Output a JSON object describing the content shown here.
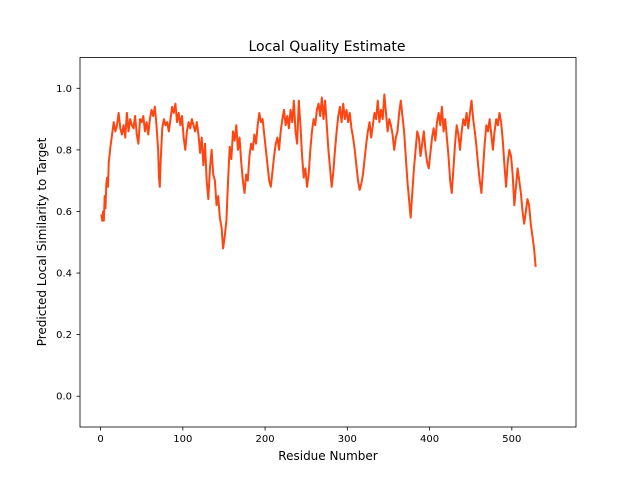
{
  "chart_data": {
    "type": "line",
    "title": "Local Quality Estimate",
    "xlabel": "Residue Number",
    "ylabel": "Predicted Local Similarity to Target",
    "xlim": [
      -25,
      578
    ],
    "ylim": [
      -0.1,
      1.1
    ],
    "x_ticks": [
      0,
      100,
      200,
      300,
      400,
      500
    ],
    "y_ticks": [
      0.0,
      0.2,
      0.4,
      0.6,
      0.8,
      1.0
    ],
    "x_tick_labels": [
      "0",
      "100",
      "200",
      "300",
      "400",
      "500"
    ],
    "y_tick_labels": [
      "0.0",
      "0.2",
      "0.4",
      "0.6",
      "0.8",
      "1.0"
    ],
    "grid": false,
    "legend": "none",
    "line_color": "#ff4511",
    "series": [
      {
        "points": [
          [
            1,
            0.59
          ],
          [
            2,
            0.57
          ],
          [
            3,
            0.6
          ],
          [
            4,
            0.57
          ],
          [
            5,
            0.65
          ],
          [
            6,
            0.61
          ],
          [
            7,
            0.69
          ],
          [
            8,
            0.71
          ],
          [
            9,
            0.68
          ],
          [
            10,
            0.76
          ],
          [
            12,
            0.81
          ],
          [
            14,
            0.85
          ],
          [
            16,
            0.89
          ],
          [
            18,
            0.86
          ],
          [
            20,
            0.88
          ],
          [
            22,
            0.92
          ],
          [
            24,
            0.87
          ],
          [
            26,
            0.85
          ],
          [
            28,
            0.88
          ],
          [
            30,
            0.84
          ],
          [
            32,
            0.92
          ],
          [
            34,
            0.86
          ],
          [
            36,
            0.9
          ],
          [
            38,
            0.88
          ],
          [
            40,
            0.87
          ],
          [
            42,
            0.91
          ],
          [
            44,
            0.85
          ],
          [
            46,
            0.82
          ],
          [
            48,
            0.9
          ],
          [
            50,
            0.89
          ],
          [
            52,
            0.91
          ],
          [
            54,
            0.86
          ],
          [
            56,
            0.89
          ],
          [
            58,
            0.85
          ],
          [
            60,
            0.9
          ],
          [
            62,
            0.93
          ],
          [
            64,
            0.91
          ],
          [
            66,
            0.94
          ],
          [
            68,
            0.88
          ],
          [
            70,
            0.8
          ],
          [
            71,
            0.71
          ],
          [
            72,
            0.68
          ],
          [
            73,
            0.76
          ],
          [
            75,
            0.87
          ],
          [
            77,
            0.9
          ],
          [
            79,
            0.88
          ],
          [
            81,
            0.89
          ],
          [
            83,
            0.86
          ],
          [
            85,
            0.9
          ],
          [
            87,
            0.94
          ],
          [
            89,
            0.92
          ],
          [
            91,
            0.95
          ],
          [
            93,
            0.89
          ],
          [
            95,
            0.92
          ],
          [
            97,
            0.88
          ],
          [
            99,
            0.91
          ],
          [
            101,
            0.84
          ],
          [
            103,
            0.8
          ],
          [
            105,
            0.86
          ],
          [
            107,
            0.89
          ],
          [
            109,
            0.87
          ],
          [
            111,
            0.9
          ],
          [
            113,
            0.88
          ],
          [
            115,
            0.86
          ],
          [
            117,
            0.89
          ],
          [
            119,
            0.85
          ],
          [
            121,
            0.79
          ],
          [
            123,
            0.84
          ],
          [
            125,
            0.75
          ],
          [
            127,
            0.82
          ],
          [
            129,
            0.7
          ],
          [
            131,
            0.64
          ],
          [
            133,
            0.74
          ],
          [
            135,
            0.8
          ],
          [
            137,
            0.72
          ],
          [
            139,
            0.7
          ],
          [
            141,
            0.62
          ],
          [
            143,
            0.65
          ],
          [
            145,
            0.58
          ],
          [
            147,
            0.55
          ],
          [
            149,
            0.48
          ],
          [
            151,
            0.52
          ],
          [
            153,
            0.57
          ],
          [
            155,
            0.7
          ],
          [
            157,
            0.81
          ],
          [
            159,
            0.77
          ],
          [
            161,
            0.86
          ],
          [
            163,
            0.83
          ],
          [
            165,
            0.88
          ],
          [
            167,
            0.8
          ],
          [
            169,
            0.84
          ],
          [
            171,
            0.76
          ],
          [
            173,
            0.7
          ],
          [
            175,
            0.66
          ],
          [
            177,
            0.72
          ],
          [
            179,
            0.7
          ],
          [
            181,
            0.78
          ],
          [
            183,
            0.82
          ],
          [
            185,
            0.8
          ],
          [
            187,
            0.85
          ],
          [
            189,
            0.82
          ],
          [
            191,
            0.88
          ],
          [
            193,
            0.92
          ],
          [
            195,
            0.89
          ],
          [
            197,
            0.9
          ],
          [
            199,
            0.85
          ],
          [
            201,
            0.8
          ],
          [
            203,
            0.75
          ],
          [
            205,
            0.7
          ],
          [
            207,
            0.68
          ],
          [
            209,
            0.73
          ],
          [
            211,
            0.78
          ],
          [
            213,
            0.82
          ],
          [
            215,
            0.84
          ],
          [
            217,
            0.8
          ],
          [
            219,
            0.86
          ],
          [
            221,
            0.9
          ],
          [
            223,
            0.93
          ],
          [
            225,
            0.88
          ],
          [
            227,
            0.91
          ],
          [
            229,
            0.87
          ],
          [
            231,
            0.93
          ],
          [
            233,
            0.89
          ],
          [
            235,
            0.96
          ],
          [
            237,
            0.86
          ],
          [
            239,
            0.82
          ],
          [
            241,
            0.96
          ],
          [
            243,
            0.88
          ],
          [
            245,
            0.78
          ],
          [
            247,
            0.71
          ],
          [
            249,
            0.74
          ],
          [
            251,
            0.68
          ],
          [
            253,
            0.72
          ],
          [
            255,
            0.8
          ],
          [
            257,
            0.86
          ],
          [
            259,
            0.9
          ],
          [
            261,
            0.88
          ],
          [
            263,
            0.93
          ],
          [
            265,
            0.95
          ],
          [
            267,
            0.91
          ],
          [
            269,
            0.97
          ],
          [
            271,
            0.9
          ],
          [
            273,
            0.96
          ],
          [
            275,
            0.88
          ],
          [
            277,
            0.8
          ],
          [
            279,
            0.74
          ],
          [
            281,
            0.68
          ],
          [
            283,
            0.73
          ],
          [
            285,
            0.8
          ],
          [
            287,
            0.86
          ],
          [
            289,
            0.91
          ],
          [
            291,
            0.94
          ],
          [
            293,
            0.89
          ],
          [
            295,
            0.95
          ],
          [
            297,
            0.9
          ],
          [
            299,
            0.93
          ],
          [
            301,
            0.89
          ],
          [
            303,
            0.92
          ],
          [
            305,
            0.87
          ],
          [
            307,
            0.84
          ],
          [
            309,
            0.8
          ],
          [
            311,
            0.75
          ],
          [
            313,
            0.7
          ],
          [
            315,
            0.67
          ],
          [
            317,
            0.69
          ],
          [
            319,
            0.72
          ],
          [
            321,
            0.77
          ],
          [
            323,
            0.82
          ],
          [
            325,
            0.86
          ],
          [
            327,
            0.89
          ],
          [
            329,
            0.84
          ],
          [
            331,
            0.88
          ],
          [
            333,
            0.92
          ],
          [
            335,
            0.9
          ],
          [
            337,
            0.96
          ],
          [
            339,
            0.89
          ],
          [
            341,
            0.93
          ],
          [
            343,
            0.9
          ],
          [
            345,
            0.98
          ],
          [
            347,
            0.92
          ],
          [
            349,
            0.86
          ],
          [
            351,
            0.9
          ],
          [
            353,
            0.88
          ],
          [
            355,
            0.85
          ],
          [
            357,
            0.8
          ],
          [
            359,
            0.84
          ],
          [
            361,
            0.86
          ],
          [
            363,
            0.92
          ],
          [
            365,
            0.96
          ],
          [
            367,
            0.91
          ],
          [
            369,
            0.86
          ],
          [
            371,
            0.78
          ],
          [
            373,
            0.7
          ],
          [
            375,
            0.64
          ],
          [
            377,
            0.58
          ],
          [
            379,
            0.66
          ],
          [
            381,
            0.74
          ],
          [
            383,
            0.8
          ],
          [
            385,
            0.86
          ],
          [
            387,
            0.84
          ],
          [
            389,
            0.78
          ],
          [
            391,
            0.82
          ],
          [
            393,
            0.86
          ],
          [
            395,
            0.8
          ],
          [
            397,
            0.76
          ],
          [
            399,
            0.74
          ],
          [
            401,
            0.79
          ],
          [
            403,
            0.84
          ],
          [
            405,
            0.87
          ],
          [
            407,
            0.83
          ],
          [
            409,
            0.89
          ],
          [
            411,
            0.92
          ],
          [
            413,
            0.88
          ],
          [
            415,
            0.94
          ],
          [
            417,
            0.86
          ],
          [
            419,
            0.9
          ],
          [
            421,
            0.84
          ],
          [
            423,
            0.78
          ],
          [
            425,
            0.7
          ],
          [
            427,
            0.66
          ],
          [
            429,
            0.74
          ],
          [
            431,
            0.82
          ],
          [
            433,
            0.88
          ],
          [
            435,
            0.85
          ],
          [
            437,
            0.8
          ],
          [
            439,
            0.86
          ],
          [
            441,
            0.9
          ],
          [
            443,
            0.88
          ],
          [
            445,
            0.92
          ],
          [
            447,
            0.87
          ],
          [
            449,
            0.92
          ],
          [
            451,
            0.96
          ],
          [
            453,
            0.9
          ],
          [
            455,
            0.86
          ],
          [
            457,
            0.81
          ],
          [
            459,
            0.75
          ],
          [
            461,
            0.7
          ],
          [
            463,
            0.66
          ],
          [
            465,
            0.74
          ],
          [
            467,
            0.82
          ],
          [
            469,
            0.88
          ],
          [
            471,
            0.86
          ],
          [
            473,
            0.9
          ],
          [
            475,
            0.85
          ],
          [
            477,
            0.8
          ],
          [
            479,
            0.86
          ],
          [
            481,
            0.9
          ],
          [
            483,
            0.88
          ],
          [
            485,
            0.92
          ],
          [
            487,
            0.89
          ],
          [
            489,
            0.83
          ],
          [
            491,
            0.75
          ],
          [
            493,
            0.68
          ],
          [
            495,
            0.76
          ],
          [
            497,
            0.8
          ],
          [
            499,
            0.78
          ],
          [
            501,
            0.72
          ],
          [
            503,
            0.62
          ],
          [
            505,
            0.68
          ],
          [
            507,
            0.74
          ],
          [
            509,
            0.7
          ],
          [
            511,
            0.66
          ],
          [
            513,
            0.6
          ],
          [
            515,
            0.56
          ],
          [
            517,
            0.6
          ],
          [
            519,
            0.64
          ],
          [
            521,
            0.62
          ],
          [
            523,
            0.56
          ],
          [
            525,
            0.52
          ],
          [
            527,
            0.48
          ],
          [
            529,
            0.42
          ]
        ]
      }
    ]
  }
}
